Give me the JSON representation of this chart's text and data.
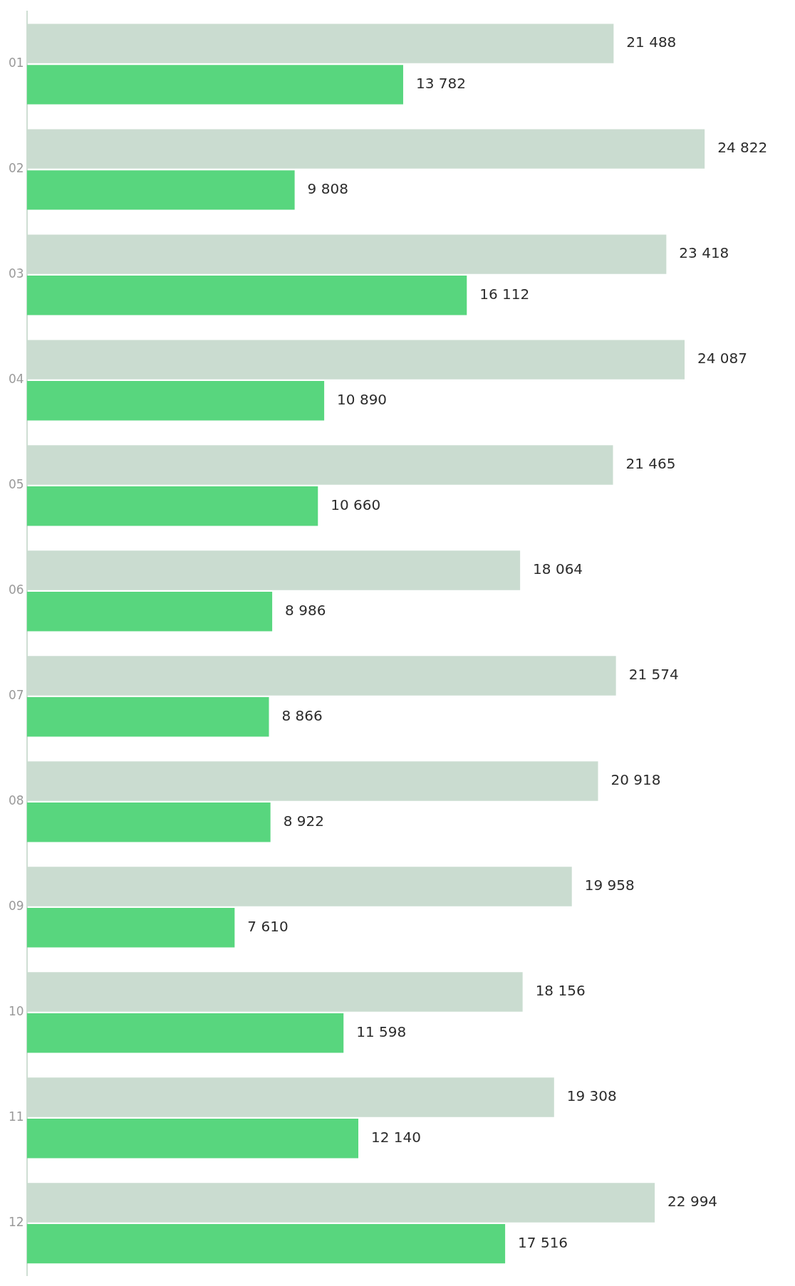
{
  "chart_data": {
    "type": "bar",
    "orientation": "horizontal",
    "categories": [
      "01",
      "02",
      "03",
      "04",
      "05",
      "06",
      "07",
      "08",
      "09",
      "10",
      "11",
      "12"
    ],
    "series": [
      {
        "color": "#cadcd0",
        "values": [
          21488,
          24822,
          23418,
          24087,
          21465,
          18064,
          21574,
          20918,
          19958,
          18156,
          19308,
          22994
        ],
        "value_labels": [
          "21 488",
          "24 822",
          "23 418",
          "24 087",
          "21 465",
          "18 064",
          "21 574",
          "20 918",
          "19 958",
          "18 156",
          "19 308",
          "22 994"
        ]
      },
      {
        "color": "#58d67e",
        "values": [
          13782,
          9808,
          16112,
          10890,
          10660,
          8986,
          8866,
          8922,
          7610,
          11598,
          12140,
          17516
        ],
        "value_labels": [
          "13 782",
          "9 808",
          "16 112",
          "10 890",
          "10 660",
          "8 986",
          "8 866",
          "8 922",
          "7 610",
          "11 598",
          "12 140",
          "17 516"
        ]
      }
    ],
    "tick_labels": "y",
    "legend": false
  }
}
